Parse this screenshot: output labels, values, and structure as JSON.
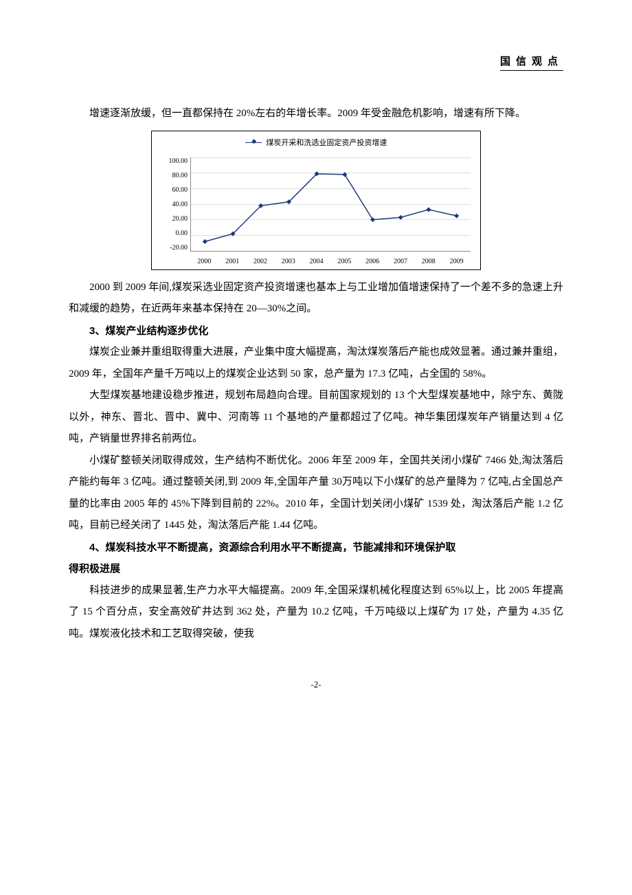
{
  "header": {
    "title": "国信观点"
  },
  "paragraphs": {
    "p1": "增速逐渐放缓，但一直都保持在 20%左右的年增长率。2009 年受金融危机影响，增速有所下降。",
    "p2": "2000 到 2009 年间,煤炭采选业固定资产投资增速也基本上与工业增加值增速保持了一个差不多的急速上升和减缓的趋势，在近两年来基本保持在 20—30%之间。",
    "h3": "3、煤炭产业结构逐步优化",
    "p3": "煤炭企业兼并重组取得重大进展，产业集中度大幅提高，淘汰煤炭落后产能也成效显著。通过兼并重组，2009 年，全国年产量千万吨以上的煤炭企业达到 50 家，总产量为 17.3 亿吨，占全国的 58%。",
    "p4": "大型煤炭基地建设稳步推进，规划布局趋向合理。目前国家规划的 13 个大型煤炭基地中，除宁东、黄陇以外，神东、晋北、晋中、冀中、河南等 11 个基地的产量都超过了亿吨。神华集团煤炭年产销量达到 4 亿吨，产销量世界排名前两位。",
    "p5": "小煤矿整顿关闭取得成效，生产结构不断优化。2006 年至 2009 年，全国共关闭小煤矿 7466 处,淘汰落后产能约每年 3 亿吨。通过整顿关闭,到 2009 年,全国年产量 30万吨以下小煤矿的总产量降为 7 亿吨,占全国总产量的比率由 2005 年的 45%下降到目前的 22%。2010 年，全国计划关闭小煤矿 1539 处，淘汰落后产能 1.2 亿吨，目前已经关闭了 1445 处，淘汰落后产能 1.44 亿吨。",
    "h4a": "4、煤炭科技水平不断提高，资源综合利用水平不断提高，节能减排和环境保护取",
    "h4b": "得积极进展",
    "p6": "科技进步的成果显著,生产力水平大幅提高。2009 年,全国采煤机械化程度达到 65%以上，比 2005 年提高了 15 个百分点，安全高效矿井达到 362 处，产量为 10.2 亿吨，千万吨级以上煤矿为 17 处，产量为 4.35 亿吨。煤炭液化技术和工艺取得突破，使我"
  },
  "chart": {
    "type": "line",
    "title": "煤炭开采和洗选业固定资产投资增速",
    "x_labels": [
      "2000",
      "2001",
      "2002",
      "2003",
      "2004",
      "2005",
      "2006",
      "2007",
      "2008",
      "2009"
    ],
    "y_ticks": [
      "100.00",
      "80.00",
      "60.00",
      "40.00",
      "20.00",
      "0.00",
      "-20.00"
    ],
    "ymin": -20,
    "ymax": 100,
    "values": [
      -8,
      2,
      38,
      43,
      79,
      78,
      20,
      23,
      33,
      25
    ],
    "line_color": "#1f3a7a",
    "marker_color": "#1f3a7a",
    "marker_size": 5,
    "grid_color": "#dddddd",
    "axis_color": "#888888",
    "background": "#ffffff",
    "title_fontsize": 11,
    "tick_fontsize": 10
  },
  "page_number": "-2-"
}
